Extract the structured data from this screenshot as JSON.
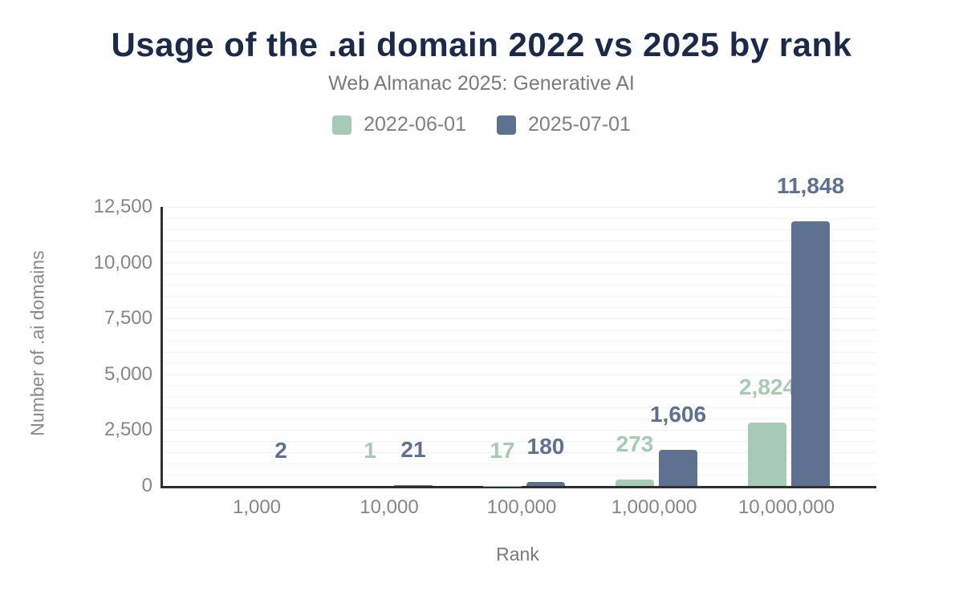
{
  "header": {
    "title": "Usage of the .ai domain 2022 vs 2025 by rank",
    "subtitle": "Web Almanac 2025: Generative AI"
  },
  "chart_data": {
    "type": "bar",
    "title": "Usage of the .ai domain 2022 vs 2025 by rank",
    "subtitle": "Web Almanac 2025: Generative AI",
    "xlabel": "Rank",
    "ylabel": "Number of .ai domains",
    "categories": [
      "1,000",
      "10,000",
      "100,000",
      "1,000,000",
      "10,000,000"
    ],
    "series": [
      {
        "name": "2022-06-01",
        "color": "#a6cab6",
        "values": [
          0,
          1,
          17,
          273,
          2824
        ],
        "labels": [
          "",
          "1",
          "17",
          "273",
          "2,824"
        ]
      },
      {
        "name": "2025-07-01",
        "color": "#5e7190",
        "values": [
          2,
          21,
          180,
          1606,
          11848
        ],
        "labels": [
          "2",
          "21",
          "180",
          "1,606",
          "11,848"
        ]
      }
    ],
    "ylim": [
      0,
      12500
    ],
    "yticks": [
      0,
      2500,
      5000,
      7500,
      10000,
      12500
    ],
    "ytick_labels": [
      "0",
      "2,500",
      "5,000",
      "7,500",
      "10,000",
      "12,500"
    ],
    "minor_grid_step": 500,
    "grid": true,
    "legend_position": "top"
  }
}
